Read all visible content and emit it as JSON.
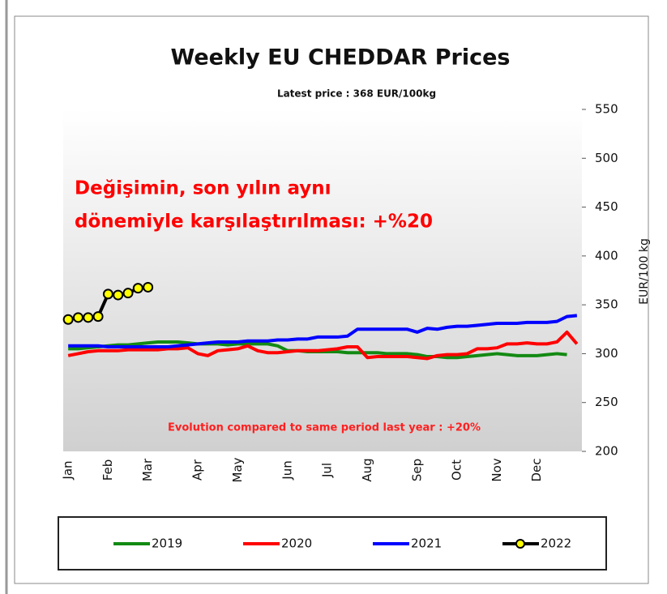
{
  "chart_data": {
    "type": "line",
    "title": "Weekly EU CHEDDAR Prices",
    "subtitle": "Latest price : 368 EUR/100kg",
    "y_label": "EUR/100 kg",
    "annotations": [
      "Değişimin,  son  yılın aynı",
      "dönemiyle  karşılaştırılması: +%20",
      "Evolution compared to same period last year : +20%"
    ],
    "categories": [
      "Jan",
      null,
      null,
      null,
      "Feb",
      null,
      null,
      null,
      "Mar",
      null,
      null,
      null,
      null,
      "Apr",
      null,
      null,
      null,
      "May",
      null,
      null,
      null,
      null,
      "Jun",
      null,
      null,
      null,
      "Jul",
      null,
      null,
      null,
      "Aug",
      null,
      null,
      null,
      null,
      "Sep",
      null,
      null,
      null,
      "Oct",
      null,
      null,
      null,
      "Nov",
      null,
      null,
      null,
      "Dec",
      null,
      null,
      null,
      null
    ],
    "series": [
      {
        "name": "2019",
        "color": "#138a13",
        "values": [
          305,
          305,
          306,
          307,
          308,
          309,
          309,
          310,
          311,
          312,
          312,
          312,
          311,
          310,
          310,
          310,
          309,
          310,
          310,
          310,
          310,
          308,
          303,
          303,
          302,
          302,
          302,
          302,
          301,
          301,
          301,
          301,
          300,
          300,
          300,
          299,
          297,
          297,
          296,
          296,
          297,
          298,
          299,
          300,
          299,
          298,
          298,
          298,
          299,
          300,
          299,
          null
        ]
      },
      {
        "name": "2020",
        "color": "#ff0000",
        "values": [
          298,
          300,
          302,
          303,
          303,
          303,
          304,
          304,
          304,
          304,
          305,
          305,
          306,
          300,
          298,
          303,
          304,
          305,
          308,
          303,
          301,
          301,
          302,
          303,
          303,
          303,
          304,
          305,
          307,
          307,
          296,
          297,
          297,
          297,
          297,
          296,
          295,
          298,
          299,
          299,
          300,
          305,
          305,
          306,
          310,
          310,
          311,
          310,
          310,
          312,
          322,
          310
        ]
      },
      {
        "name": "2021",
        "color": "#0000ff",
        "values": [
          308,
          308,
          308,
          308,
          307,
          307,
          307,
          307,
          307,
          307,
          307,
          308,
          309,
          310,
          311,
          312,
          312,
          312,
          313,
          313,
          313,
          314,
          314,
          315,
          315,
          317,
          317,
          317,
          318,
          325,
          325,
          325,
          325,
          325,
          325,
          322,
          326,
          325,
          327,
          328,
          328,
          329,
          330,
          331,
          331,
          331,
          332,
          332,
          332,
          333,
          338,
          339
        ]
      },
      {
        "name": "2022",
        "color": "#000000",
        "marker_color": "#ffff00",
        "values": [
          335,
          337,
          337,
          338,
          361,
          360,
          362,
          367,
          368,
          null,
          null,
          null,
          null,
          null,
          null,
          null,
          null,
          null,
          null,
          null,
          null,
          null,
          null,
          null,
          null,
          null,
          null,
          null,
          null,
          null,
          null,
          null,
          null,
          null,
          null,
          null,
          null,
          null,
          null,
          null,
          null,
          null,
          null,
          null,
          null,
          null,
          null,
          null,
          null,
          null,
          null,
          null
        ]
      }
    ],
    "ylim": [
      200,
      550
    ],
    "yticks": [
      200,
      250,
      300,
      350,
      400,
      450,
      500,
      550
    ],
    "grid": false,
    "legend": "bottom"
  }
}
